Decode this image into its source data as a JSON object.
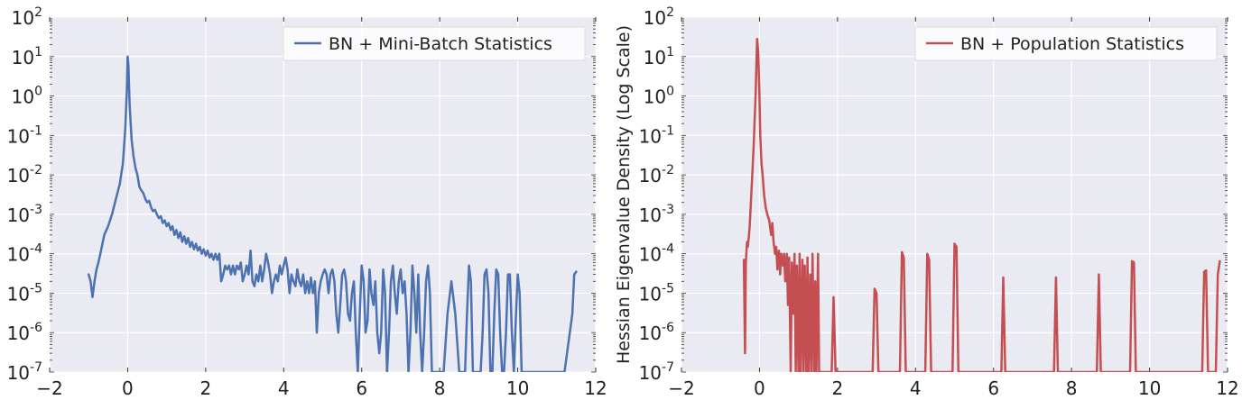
{
  "chart_data": [
    {
      "type": "line",
      "title": "",
      "xlabel": "",
      "ylabel": "",
      "xlim": [
        -2,
        12
      ],
      "ylim": [
        1e-07,
        100
      ],
      "yscale": "log",
      "grid": true,
      "legend_position": "top-right",
      "x_ticks": [
        "−2",
        "0",
        "2",
        "4",
        "6",
        "8",
        "10",
        "12"
      ],
      "y_ticks": [
        {
          "base": "10",
          "exp": "-7"
        },
        {
          "base": "10",
          "exp": "-6"
        },
        {
          "base": "10",
          "exp": "-5"
        },
        {
          "base": "10",
          "exp": "-4"
        },
        {
          "base": "10",
          "exp": "-3"
        },
        {
          "base": "10",
          "exp": "-2"
        },
        {
          "base": "10",
          "exp": "-1"
        },
        {
          "base": "10",
          "exp": "0"
        },
        {
          "base": "10",
          "exp": "1"
        },
        {
          "base": "10",
          "exp": "2"
        }
      ],
      "series": [
        {
          "name": "BN + Mini-Batch Statistics",
          "color": "#4c72b0",
          "x": [
            -1.0,
            -0.95,
            -0.9,
            -0.85,
            -0.8,
            -0.75,
            -0.7,
            -0.6,
            -0.5,
            -0.4,
            -0.3,
            -0.2,
            -0.12,
            -0.06,
            -0.02,
            0.0,
            0.02,
            0.05,
            0.1,
            0.15,
            0.2,
            0.25,
            0.3,
            0.35,
            0.4,
            0.45,
            0.5,
            0.55,
            0.6,
            0.65,
            0.7,
            0.75,
            0.8,
            0.85,
            0.9,
            0.95,
            1.0,
            1.05,
            1.1,
            1.15,
            1.2,
            1.25,
            1.3,
            1.35,
            1.4,
            1.45,
            1.5,
            1.55,
            1.6,
            1.65,
            1.7,
            1.75,
            1.8,
            1.85,
            1.9,
            1.95,
            2.0,
            2.05,
            2.1,
            2.15,
            2.2,
            2.25,
            2.3,
            2.35,
            2.4,
            2.45,
            2.5,
            2.55,
            2.6,
            2.65,
            2.7,
            2.75,
            2.8,
            2.85,
            2.9,
            2.95,
            3.0,
            3.05,
            3.1,
            3.15,
            3.2,
            3.25,
            3.3,
            3.35,
            3.4,
            3.45,
            3.5,
            3.55,
            3.6,
            3.65,
            3.7,
            3.75,
            3.8,
            3.85,
            3.9,
            3.95,
            4.0,
            4.05,
            4.1,
            4.15,
            4.2,
            4.25,
            4.3,
            4.35,
            4.4,
            4.45,
            4.5,
            4.55,
            4.6,
            4.65,
            4.7,
            4.75,
            4.8,
            4.85,
            4.9,
            4.95,
            5.0,
            5.05,
            5.1,
            5.15,
            5.2,
            5.25,
            5.3,
            5.35,
            5.4,
            5.45,
            5.5,
            5.55,
            5.6,
            5.65,
            5.7,
            5.75,
            5.8,
            5.85,
            5.9,
            5.95,
            6.0,
            6.05,
            6.1,
            6.15,
            6.2,
            6.25,
            6.3,
            6.35,
            6.4,
            6.45,
            6.5,
            6.55,
            6.6,
            6.65,
            6.7,
            6.75,
            6.8,
            6.85,
            6.9,
            6.95,
            7.0,
            7.05,
            7.1,
            7.15,
            7.2,
            7.25,
            7.3,
            7.35,
            7.4,
            7.45,
            7.5,
            7.55,
            7.6,
            7.65,
            7.7,
            7.75,
            7.8,
            7.85,
            7.9,
            7.95,
            8.0,
            8.1,
            8.2,
            8.3,
            8.4,
            8.5,
            8.55,
            8.6,
            8.65,
            8.7,
            8.75,
            8.8,
            8.85,
            8.9,
            8.95,
            9.0,
            9.05,
            9.1,
            9.15,
            9.2,
            9.25,
            9.3,
            9.35,
            9.4,
            9.45,
            9.5,
            9.55,
            9.6,
            9.65,
            9.7,
            9.75,
            9.8,
            9.85,
            9.9,
            9.95,
            10.0,
            10.05,
            10.1,
            10.15,
            10.2,
            10.25,
            10.3,
            10.4,
            10.6,
            10.8,
            11.0,
            11.2,
            11.4,
            11.45,
            11.5
          ],
          "y": [
            3e-05,
            2e-05,
            8e-06,
            2e-05,
            4e-05,
            6e-05,
            0.0001,
            0.0003,
            0.0005,
            0.001,
            0.0025,
            0.006,
            0.02,
            0.15,
            1.5,
            10,
            6,
            0.6,
            0.08,
            0.03,
            0.015,
            0.01,
            0.005,
            0.004,
            0.0035,
            0.0025,
            0.002,
            0.0022,
            0.0015,
            0.0012,
            0.0013,
            0.001,
            0.0008,
            0.0009,
            0.0006,
            0.0007,
            0.0005,
            0.0006,
            0.0004,
            0.0005,
            0.0003,
            0.0004,
            0.00025,
            0.00035,
            0.0002,
            0.00028,
            0.00018,
            0.00025,
            0.00015,
            0.0002,
            0.00013,
            0.00018,
            0.00012,
            0.00015,
            0.0001,
            0.00013,
            9e-05,
            0.00012,
            8e-05,
            0.0001,
            7e-05,
            0.0001,
            7e-05,
            0.0001,
            2e-05,
            3e-05,
            5e-05,
            4e-05,
            5e-05,
            3e-05,
            5e-05,
            3e-05,
            5e-05,
            4e-05,
            6e-05,
            2e-05,
            3e-05,
            5e-05,
            3e-05,
            0.00012,
            2e-05,
            1.5e-05,
            3e-05,
            2e-05,
            5e-05,
            2e-05,
            4e-05,
            0.0001,
            6e-05,
            3e-05,
            1e-05,
            2e-05,
            3e-05,
            2e-05,
            5e-05,
            3e-05,
            5e-05,
            8e-05,
            4e-05,
            1e-05,
            3e-05,
            2e-05,
            1.5e-05,
            4e-05,
            2e-05,
            1.5e-05,
            3e-05,
            1e-05,
            2e-05,
            1e-05,
            2.5e-05,
            1e-05,
            2e-05,
            1e-06,
            1e-05,
            2e-05,
            3e-05,
            4e-05,
            3e-05,
            1e-05,
            3e-05,
            4e-05,
            2e-05,
            3e-06,
            1e-06,
            5e-06,
            3e-05,
            4e-05,
            2e-05,
            3e-06,
            2e-06,
            1e-05,
            2e-05,
            1e-06,
            1e-07,
            3e-06,
            5e-05,
            2e-05,
            1e-06,
            2e-06,
            4e-05,
            1e-05,
            5e-06,
            2e-05,
            1e-06,
            3e-07,
            1e-06,
            4e-05,
            1e-05,
            1e-07,
            1e-06,
            2e-05,
            5e-05,
            1e-05,
            3e-06,
            2e-05,
            4e-05,
            1e-05,
            2e-05,
            3e-06,
            1e-07,
            1e-06,
            5e-05,
            1e-05,
            1e-06,
            3e-05,
            1e-06,
            1e-07,
            1e-06,
            2e-05,
            5e-05,
            1e-05,
            1e-07,
            1e-07,
            1e-07,
            1e-07,
            1e-07,
            1e-07,
            3e-06,
            2e-05,
            3e-06,
            1e-07,
            1e-07,
            1e-07,
            1e-07,
            3e-06,
            5e-05,
            2e-05,
            1e-07,
            1e-07,
            1e-07,
            1e-07,
            1e-07,
            1e-06,
            3e-05,
            4e-05,
            1e-05,
            1e-07,
            1e-07,
            3e-06,
            4e-05,
            3e-05,
            1e-06,
            1e-07,
            1e-07,
            1e-06,
            3e-05,
            3e-05,
            1e-06,
            1e-07,
            2e-06,
            3e-05,
            1e-05,
            1e-07,
            1e-07,
            1e-07,
            1e-07,
            1e-07,
            1e-07,
            1e-07,
            1e-07,
            1e-07,
            1e-07,
            3e-06,
            3e-05,
            3.5e-05
          ]
        }
      ]
    },
    {
      "type": "line",
      "title": "",
      "xlabel": "",
      "ylabel": "Hessian Eigenvalue Density (Log Scale)",
      "xlim": [
        -2,
        12
      ],
      "ylim": [
        1e-07,
        100
      ],
      "yscale": "log",
      "grid": true,
      "legend_position": "top-right",
      "x_ticks": [
        "−2",
        "0",
        "2",
        "4",
        "6",
        "8",
        "10",
        "12"
      ],
      "y_ticks": [
        {
          "base": "10",
          "exp": "-7"
        },
        {
          "base": "10",
          "exp": "-6"
        },
        {
          "base": "10",
          "exp": "-5"
        },
        {
          "base": "10",
          "exp": "-4"
        },
        {
          "base": "10",
          "exp": "-3"
        },
        {
          "base": "10",
          "exp": "-2"
        },
        {
          "base": "10",
          "exp": "-1"
        },
        {
          "base": "10",
          "exp": "0"
        },
        {
          "base": "10",
          "exp": "1"
        },
        {
          "base": "10",
          "exp": "2"
        }
      ],
      "series": [
        {
          "name": "BN + Population Statistics",
          "color": "#c44e52",
          "x": [
            -0.4,
            -0.37,
            -0.35,
            -0.32,
            -0.3,
            -0.27,
            -0.25,
            -0.22,
            -0.2,
            -0.15,
            -0.1,
            -0.06,
            -0.03,
            0.0,
            0.02,
            0.05,
            0.08,
            0.12,
            0.16,
            0.2,
            0.25,
            0.3,
            0.33,
            0.36,
            0.4,
            0.43,
            0.46,
            0.5,
            0.53,
            0.56,
            0.6,
            0.63,
            0.66,
            0.7,
            0.73,
            0.76,
            0.8,
            0.83,
            0.86,
            0.9,
            0.93,
            0.96,
            1.0,
            1.03,
            1.06,
            1.1,
            1.13,
            1.16,
            1.2,
            1.23,
            1.26,
            1.3,
            1.33,
            1.36,
            1.4,
            1.43,
            1.46,
            1.5,
            1.53,
            1.56,
            1.6,
            1.65,
            1.7,
            1.75,
            1.8,
            1.85,
            1.9,
            1.95,
            2.0,
            2.5,
            2.9,
            2.95,
            3.0,
            3.05,
            3.6,
            3.65,
            3.7,
            3.75,
            4.25,
            4.3,
            4.35,
            4.4,
            4.95,
            5.0,
            5.05,
            5.1,
            6.2,
            6.25,
            6.3,
            7.55,
            7.6,
            7.65,
            8.65,
            8.7,
            8.75,
            9.5,
            9.55,
            9.6,
            9.65,
            11.35,
            11.4,
            11.45,
            11.5,
            11.65,
            11.7,
            11.75,
            11.8
          ],
          "y": [
            7e-05,
            3e-07,
            6e-05,
            0.0002,
            0.00015,
            0.0003,
            0.0005,
            0.002,
            0.005,
            0.05,
            1.0,
            28,
            12,
            1.0,
            0.1,
            0.02,
            0.01,
            0.003,
            0.0015,
            0.001,
            0.0007,
            0.0003,
            0.0006,
            0.0002,
            0.0001,
            0.00015,
            4e-05,
            0.00012,
            3e-05,
            0.0001,
            5e-05,
            0.0001,
            2e-05,
            0.0001,
            5e-06,
            8e-05,
            1e-07,
            6e-05,
            3e-06,
            0.0001,
            1e-07,
            5e-05,
            1e-07,
            0.0001,
            1e-07,
            7e-05,
            1e-07,
            5e-05,
            1e-07,
            8e-05,
            1e-07,
            3e-05,
            1e-07,
            0.0001,
            1e-07,
            2e-05,
            1e-07,
            0.0001,
            1e-07,
            1e-07,
            1e-07,
            1e-07,
            1e-07,
            1e-07,
            1e-07,
            1e-07,
            8e-06,
            1e-07,
            1e-07,
            1e-07,
            1e-07,
            1.3e-05,
            1e-05,
            1e-07,
            1e-07,
            0.00011,
            8e-05,
            1e-07,
            1e-07,
            0.0001,
            7e-05,
            1e-07,
            1e-07,
            0.00018,
            0.00015,
            1e-07,
            1e-07,
            2.5e-05,
            1e-07,
            1e-07,
            2.5e-05,
            1e-07,
            1e-07,
            3e-05,
            1e-07,
            1e-07,
            6.5e-05,
            6e-05,
            1e-07,
            1e-07,
            3.5e-05,
            3.8e-05,
            1e-07,
            1e-07,
            1e-07,
            3e-05,
            6.5e-05
          ]
        }
      ]
    }
  ]
}
